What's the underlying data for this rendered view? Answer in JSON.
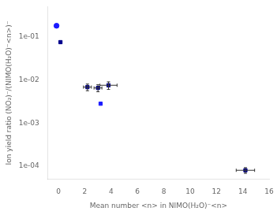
{
  "chart_data": {
    "type": "scatter",
    "xlabel": "Mean number <n> in NIMO(H₂O)⁻<n>",
    "ylabel": "Ion yield ratio (NO₂)⁻/(NIMO(H₂O)⁻<n>)⁻",
    "log": "y",
    "grid": false,
    "xlim": [
      -0.8,
      16
    ],
    "ylim": [
      5e-05,
      0.5
    ],
    "xticks": [
      0,
      2,
      4,
      6,
      8,
      10,
      12,
      14,
      16
    ],
    "yticks": [
      {
        "value": 0.0001,
        "label": "1e-04"
      },
      {
        "value": 0.001,
        "label": "1e-03"
      },
      {
        "value": 0.01,
        "label": "1e-02"
      },
      {
        "value": 0.1,
        "label": "1e-01"
      }
    ],
    "series": [
      {
        "marker": "circle",
        "colors": [
          "#1a1aff"
        ],
        "x": [
          -0.15
        ],
        "values": [
          0.18
        ],
        "xerr": [
          0
        ],
        "yerr": [
          0
        ]
      },
      {
        "marker": "square",
        "colors": [
          "#00008B",
          "#00008B",
          "#00008B",
          "#00008B",
          "#1a1aff",
          "#00008B"
        ],
        "x": [
          0.15,
          2.2,
          3.0,
          3.8,
          3.2,
          14.2
        ],
        "values": [
          0.075,
          0.0068,
          0.0065,
          0.0075,
          0.0028,
          8e-05
        ],
        "xerr": [
          0,
          0.3,
          0.3,
          0.65,
          0,
          0.7
        ],
        "yerr": [
          0,
          0.0012,
          0.0012,
          0.0015,
          0,
          1.2e-05
        ]
      }
    ]
  }
}
